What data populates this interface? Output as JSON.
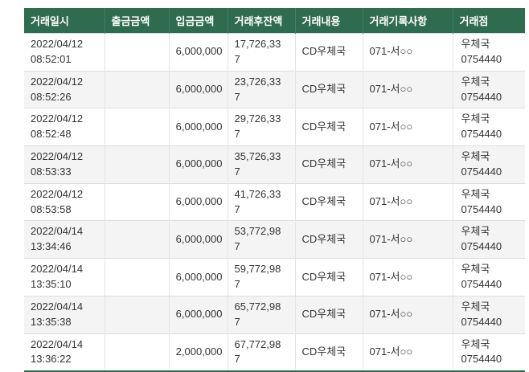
{
  "colors": {
    "header_bg": "#2f6b4e",
    "header_text": "#ffffff",
    "row_alt_bg": "#f4f4f4",
    "row_border": "#dcdcdc",
    "body_text": "#333333"
  },
  "table": {
    "columns": [
      {
        "label": "거래일시"
      },
      {
        "label": "출금금액"
      },
      {
        "label": "입금금액"
      },
      {
        "label": "거래후잔액"
      },
      {
        "label": "거래내용"
      },
      {
        "label": "거래기록사항"
      },
      {
        "label": "거래점"
      }
    ],
    "rows": [
      {
        "date": "2022/04/12",
        "time": "08:52:01",
        "withdrawal": "",
        "deposit": "6,000,000",
        "balance": "17,726,337",
        "content": "CD우체국",
        "record": "071-서○○",
        "branch_name": "우체국",
        "branch_code": "0754440"
      },
      {
        "date": "2022/04/12",
        "time": "08:52:26",
        "withdrawal": "",
        "deposit": "6,000,000",
        "balance": "23,726,337",
        "content": "CD우체국",
        "record": "071-서○○",
        "branch_name": "우체국",
        "branch_code": "0754440"
      },
      {
        "date": "2022/04/12",
        "time": "08:52:48",
        "withdrawal": "",
        "deposit": "6,000,000",
        "balance": "29,726,337",
        "content": "CD우체국",
        "record": "071-서○○",
        "branch_name": "우체국",
        "branch_code": "0754440"
      },
      {
        "date": "2022/04/12",
        "time": "08:53:33",
        "withdrawal": "",
        "deposit": "6,000,000",
        "balance": "35,726,337",
        "content": "CD우체국",
        "record": "071-서○○",
        "branch_name": "우체국",
        "branch_code": "0754440"
      },
      {
        "date": "2022/04/12",
        "time": "08:53:58",
        "withdrawal": "",
        "deposit": "6,000,000",
        "balance": "41,726,337",
        "content": "CD우체국",
        "record": "071-서○○",
        "branch_name": "우체국",
        "branch_code": "0754440"
      },
      {
        "date": "2022/04/14",
        "time": "13:34:46",
        "withdrawal": "",
        "deposit": "6,000,000",
        "balance": "53,772,987",
        "content": "CD우체국",
        "record": "071-서○○",
        "branch_name": "우체국",
        "branch_code": "0754440"
      },
      {
        "date": "2022/04/14",
        "time": "13:35:10",
        "withdrawal": "",
        "deposit": "6,000,000",
        "balance": "59,772,987",
        "content": "CD우체국",
        "record": "071-서○○",
        "branch_name": "우체국",
        "branch_code": "0754440"
      },
      {
        "date": "2022/04/14",
        "time": "13:35:38",
        "withdrawal": "",
        "deposit": "6,000,000",
        "balance": "65,772,987",
        "content": "CD우체국",
        "record": "071-서○○",
        "branch_name": "우체국",
        "branch_code": "0754440"
      },
      {
        "date": "2022/04/14",
        "time": "13:36:22",
        "withdrawal": "",
        "deposit": "2,000,000",
        "balance": "67,772,987",
        "content": "CD우체국",
        "record": "071-서○○",
        "branch_name": "우체국",
        "branch_code": "0754440"
      }
    ]
  }
}
